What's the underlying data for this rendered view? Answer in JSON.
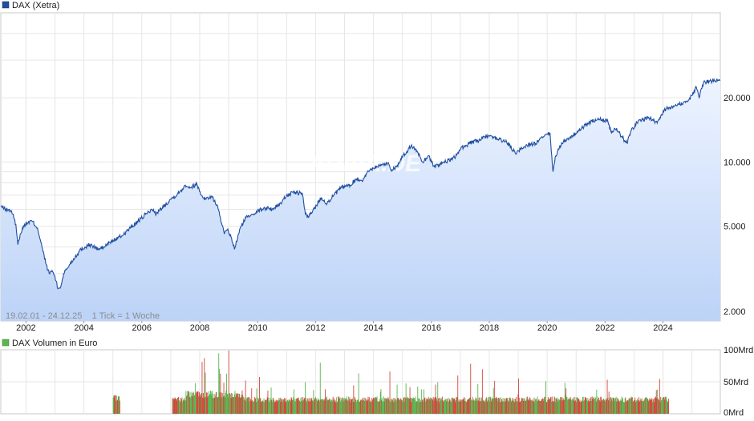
{
  "chart_data": [
    {
      "type": "line",
      "legend": "DAX (Xetra)",
      "info": "19.02.01 - 24.12.25    1 Tick = 1 Woche",
      "watermark": "ARIVA.DE",
      "scale": "log",
      "ylim": [
        1800,
        50000
      ],
      "xlim": [
        2001.13,
        2025.98
      ],
      "x_ticks": [
        2002,
        2004,
        2006,
        2008,
        2010,
        2012,
        2014,
        2016,
        2018,
        2020,
        2022,
        2024
      ],
      "y_ticks": [
        {
          "value": 2000,
          "label": "2.000"
        },
        {
          "value": 5000,
          "label": "5.000"
        },
        {
          "value": 10000,
          "label": "10.000"
        },
        {
          "value": 20000,
          "label": "20.000"
        }
      ],
      "grid": true,
      "colors": {
        "line": "#1f4fa0",
        "fill_top": "#eef4ff",
        "fill_bottom": "#bcd3f7",
        "legend": "#1f4fa0"
      },
      "series": [
        {
          "x": [
            2001.13,
            2001.3,
            2001.5,
            2001.65,
            2001.72,
            2001.8,
            2001.95,
            2002.2,
            2002.4,
            2002.55,
            2002.7,
            2002.8,
            2002.9,
            2003.0,
            2003.1,
            2003.2,
            2003.3,
            2003.5,
            2003.7,
            2003.9,
            2004.2,
            2004.5,
            2004.7,
            2004.9,
            2005.3,
            2005.6,
            2005.9,
            2006.2,
            2006.4,
            2006.5,
            2006.8,
            2007.0,
            2007.3,
            2007.5,
            2007.7,
            2007.9,
            2008.05,
            2008.2,
            2008.4,
            2008.6,
            2008.75,
            2008.85,
            2008.95,
            2009.1,
            2009.2,
            2009.4,
            2009.6,
            2009.8,
            2010.0,
            2010.3,
            2010.5,
            2010.8,
            2011.0,
            2011.3,
            2011.55,
            2011.65,
            2011.75,
            2011.9,
            2012.2,
            2012.4,
            2012.6,
            2012.9,
            2013.2,
            2013.4,
            2013.6,
            2013.9,
            2014.2,
            2014.5,
            2014.6,
            2014.8,
            2015.0,
            2015.3,
            2015.5,
            2015.7,
            2015.9,
            2016.1,
            2016.3,
            2016.5,
            2016.8,
            2017.0,
            2017.3,
            2017.6,
            2017.9,
            2018.1,
            2018.3,
            2018.6,
            2018.9,
            2019.0,
            2019.3,
            2019.6,
            2019.9,
            2020.1,
            2020.2,
            2020.3,
            2020.5,
            2020.7,
            2020.9,
            2021.1,
            2021.4,
            2021.7,
            2021.9,
            2022.1,
            2022.2,
            2022.4,
            2022.6,
            2022.75,
            2022.9,
            2023.1,
            2023.3,
            2023.5,
            2023.7,
            2023.8,
            2023.95,
            2024.1,
            2024.3,
            2024.5,
            2024.7,
            2024.9,
            2025.0,
            2025.15,
            2025.25,
            2025.4,
            2025.6,
            2025.8,
            2025.98
          ],
          "y": [
            6200,
            6000,
            5900,
            5100,
            4100,
            4600,
            5100,
            5300,
            4900,
            4000,
            3300,
            3000,
            3100,
            2900,
            2550,
            2600,
            3000,
            3300,
            3600,
            3900,
            4100,
            3900,
            4000,
            4200,
            4500,
            4900,
            5300,
            5800,
            6000,
            5700,
            6300,
            6700,
            7200,
            7800,
            7600,
            7900,
            7000,
            6700,
            6900,
            6300,
            5200,
            4600,
            4800,
            4400,
            3900,
            4900,
            5500,
            5700,
            5900,
            6100,
            6000,
            6400,
            7000,
            7200,
            7100,
            5700,
            5500,
            5900,
            6800,
            6400,
            6900,
            7600,
            7800,
            8300,
            8200,
            9300,
            9600,
            9900,
            9200,
            9500,
            10500,
            11900,
            11300,
            10000,
            10700,
            9500,
            9800,
            10000,
            10500,
            11500,
            12200,
            12600,
            13100,
            13200,
            12800,
            12400,
            11000,
            11300,
            12000,
            12200,
            13200,
            13600,
            9000,
            10700,
            12300,
            12800,
            13300,
            14000,
            15200,
            15700,
            15800,
            15500,
            13900,
            14400,
            13000,
            12300,
            14000,
            15300,
            15800,
            16200,
            15600,
            15200,
            16700,
            17700,
            18300,
            18500,
            19000,
            19600,
            20500,
            22500,
            20000,
            23600,
            24000,
            24000,
            24200
          ]
        }
      ]
    },
    {
      "type": "bar",
      "legend": "DAX Volumen in Euro",
      "ylim": [
        0,
        100
      ],
      "y_ticks": [
        {
          "value": 0,
          "label": "0Mrd"
        },
        {
          "value": 50,
          "label": "50Mrd"
        },
        {
          "value": 100,
          "label": "100Mrd"
        }
      ],
      "grid": true,
      "colors": {
        "up": "#5ab54f",
        "down": "#d2473d",
        "legend": "#5ab54f"
      },
      "series": [
        {
          "name": "",
          "segments": [
            {
              "x_start": 2005.0,
              "x_end": 2005.25,
              "base": 20,
              "peak": 30
            },
            {
              "x_start": 2007.05,
              "x_end": 2018.5,
              "base": 18,
              "peak": 82
            },
            {
              "x_start": 2018.5,
              "x_end": 2024.2,
              "base": 18,
              "peak": 60
            }
          ]
        }
      ]
    }
  ]
}
